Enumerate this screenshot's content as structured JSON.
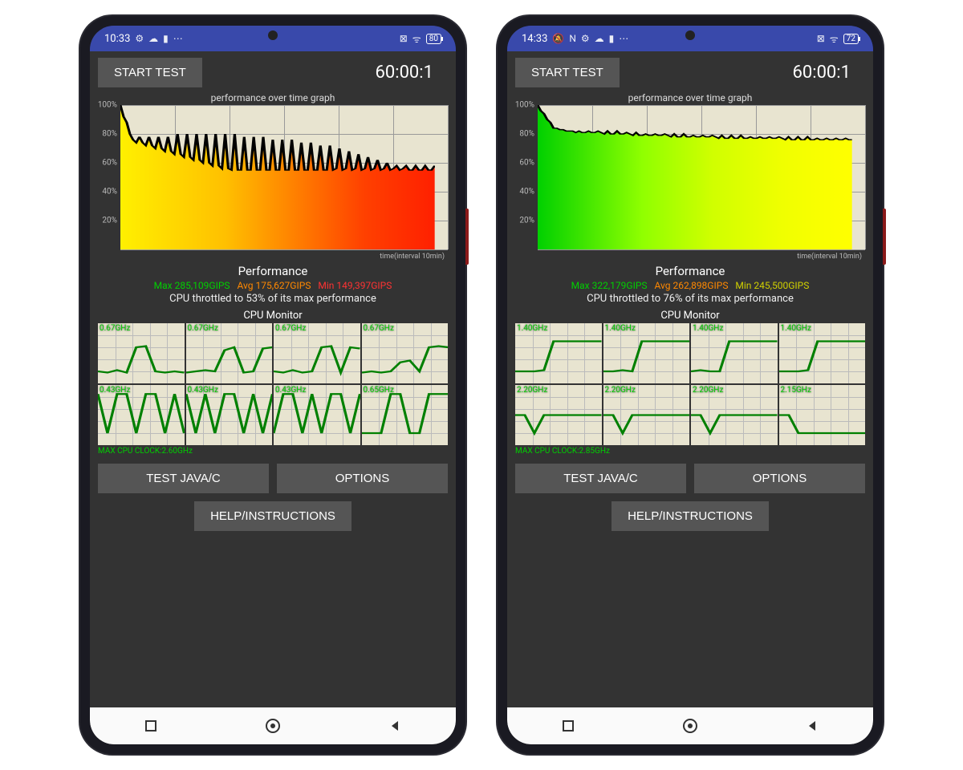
{
  "phones": [
    {
      "status": {
        "time": "10:33",
        "battery": "80",
        "left_icons": [
          "⚙",
          "☁",
          "▮",
          "⋯"
        ],
        "right_icons": [
          "⊠",
          "ᯤ"
        ]
      },
      "timer": "60:00:1",
      "start_label": "START TEST",
      "chart": {
        "title": "performance over time graph",
        "time_label": "time(interval 10min)",
        "y_ticks": [
          "100%",
          "80%",
          "60%",
          "40%",
          "20%"
        ],
        "ylim": [
          0,
          100
        ],
        "grid_color": "#999999",
        "bg_color": "#e8e4d0",
        "width_pct": 96,
        "line": [
          100,
          92,
          88,
          80,
          76,
          74,
          78,
          74,
          72,
          78,
          72,
          70,
          78,
          70,
          68,
          78,
          68,
          66,
          80,
          66,
          64,
          80,
          64,
          62,
          80,
          62,
          60,
          80,
          60,
          58,
          80,
          58,
          56,
          80,
          56,
          55,
          80,
          55,
          55,
          78,
          55,
          55,
          78,
          55,
          55,
          78,
          55,
          55,
          76,
          55,
          55,
          76,
          55,
          55,
          76,
          55,
          55,
          74,
          55,
          55,
          74,
          55,
          55,
          72,
          55,
          55,
          72,
          55,
          56,
          70,
          55,
          56,
          68,
          55,
          56,
          66,
          55,
          56,
          64,
          55,
          56,
          62,
          55,
          56,
          60,
          55,
          56,
          58,
          55,
          56,
          58,
          55,
          55,
          58,
          55,
          55,
          58,
          55,
          55,
          58
        ],
        "gradient": [
          "#fff000",
          "#ffe000",
          "#ffd000",
          "#ffc000",
          "#ffa000",
          "#ff8000",
          "#ff6000",
          "#ff4000",
          "#ff3000",
          "#ff2000"
        ],
        "line_color": "#000000"
      },
      "perf": {
        "heading": "Performance",
        "max": "Max 285,109GIPS",
        "avg": "Avg 175,627GIPS",
        "min": "Min 149,397GIPS",
        "min_color": "#ff3333",
        "throttle": "CPU throttled to 53% of its max performance"
      },
      "cpu": {
        "title": "CPU Monitor",
        "max_clock": "MAX CPU CLOCK:2.60GHz",
        "cores": [
          {
            "freq": "0.67GHz",
            "line": [
              20,
              18,
              22,
              18,
              60,
              62,
              20,
              18,
              20,
              18
            ]
          },
          {
            "freq": "0.67GHz",
            "line": [
              18,
              20,
              22,
              20,
              55,
              60,
              18,
              20,
              58,
              60
            ]
          },
          {
            "freq": "0.67GHz",
            "line": [
              20,
              18,
              22,
              18,
              20,
              60,
              62,
              18,
              60,
              58
            ]
          },
          {
            "freq": "0.67GHz",
            "line": [
              18,
              20,
              18,
              20,
              35,
              38,
              20,
              60,
              62,
              60
            ]
          },
          {
            "freq": "0.43GHz",
            "line": [
              85,
              20,
              85,
              85,
              20,
              85,
              85,
              20,
              85,
              20
            ]
          },
          {
            "freq": "0.43GHz",
            "line": [
              85,
              20,
              85,
              20,
              85,
              85,
              20,
              85,
              20,
              85
            ]
          },
          {
            "freq": "0.43GHz",
            "line": [
              20,
              85,
              85,
              20,
              85,
              20,
              85,
              85,
              20,
              85
            ]
          },
          {
            "freq": "0.65GHz",
            "line": [
              20,
              20,
              20,
              85,
              85,
              20,
              20,
              85,
              85,
              85
            ]
          }
        ],
        "line_color": "#008000"
      },
      "buttons": {
        "test": "TEST JAVA/C",
        "options": "OPTIONS",
        "help": "HELP/INSTRUCTIONS"
      }
    },
    {
      "status": {
        "time": "14:33",
        "battery": "72",
        "left_icons": [
          "🔕",
          "N",
          "⚙",
          "☁",
          "▮",
          "⋯"
        ],
        "right_icons": [
          "⊠",
          "ᯤ"
        ]
      },
      "timer": "60:00:1",
      "start_label": "START TEST",
      "chart": {
        "title": "performance over time graph",
        "time_label": "time(interval 10min)",
        "y_ticks": [
          "100%",
          "80%",
          "60%",
          "40%",
          "20%"
        ],
        "ylim": [
          0,
          100
        ],
        "grid_color": "#999999",
        "bg_color": "#e8e4d0",
        "width_pct": 96,
        "line": [
          100,
          96,
          94,
          90,
          88,
          84,
          84,
          83,
          83,
          82,
          82,
          82,
          81,
          82,
          81,
          81,
          82,
          81,
          81,
          82,
          81,
          80,
          82,
          80,
          80,
          82,
          80,
          80,
          81,
          80,
          79,
          81,
          79,
          79,
          80,
          79,
          79,
          80,
          79,
          79,
          80,
          79,
          78,
          80,
          78,
          78,
          80,
          78,
          78,
          79,
          78,
          78,
          79,
          78,
          78,
          79,
          78,
          77,
          79,
          77,
          77,
          79,
          77,
          77,
          79,
          77,
          77,
          78,
          77,
          77,
          78,
          77,
          77,
          78,
          77,
          77,
          78,
          77,
          76,
          78,
          76,
          76,
          78,
          76,
          76,
          78,
          76,
          76,
          77,
          76,
          76,
          77,
          76,
          76,
          77,
          76,
          76,
          77,
          76,
          76
        ],
        "gradient": [
          "#00d000",
          "#30e000",
          "#60f000",
          "#90ff00",
          "#b0ff00",
          "#d0ff00",
          "#e0ff00",
          "#f0ff00",
          "#f8ff00",
          "#ffff00"
        ],
        "line_color": "#000000"
      },
      "perf": {
        "heading": "Performance",
        "max": "Max 322,179GIPS",
        "avg": "Avg 262,898GIPS",
        "min": "Min 245,500GIPS",
        "min_color": "#d0d000",
        "throttle": "CPU throttled to 76% of its max performance"
      },
      "cpu": {
        "title": "CPU Monitor",
        "max_clock": "MAX CPU CLOCK:2.85GHz",
        "cores": [
          {
            "freq": "1.40GHz",
            "line": [
              20,
              20,
              20,
              22,
              70,
              70,
              70,
              70,
              70,
              70
            ]
          },
          {
            "freq": "1.40GHz",
            "line": [
              20,
              20,
              22,
              20,
              70,
              70,
              70,
              70,
              70,
              70
            ]
          },
          {
            "freq": "1.40GHz",
            "line": [
              20,
              22,
              20,
              20,
              70,
              70,
              70,
              70,
              70,
              70
            ]
          },
          {
            "freq": "1.40GHz",
            "line": [
              20,
              20,
              20,
              22,
              70,
              70,
              70,
              70,
              70,
              70
            ]
          },
          {
            "freq": "2.20GHz",
            "line": [
              50,
              50,
              20,
              50,
              50,
              50,
              50,
              50,
              50,
              50
            ]
          },
          {
            "freq": "2.20GHz",
            "line": [
              50,
              50,
              20,
              50,
              50,
              50,
              50,
              50,
              50,
              50
            ]
          },
          {
            "freq": "2.20GHz",
            "line": [
              50,
              50,
              20,
              50,
              50,
              50,
              50,
              50,
              50,
              50
            ]
          },
          {
            "freq": "2.15GHz",
            "line": [
              50,
              50,
              20,
              20,
              20,
              20,
              20,
              20,
              20,
              20
            ]
          }
        ],
        "line_color": "#008000"
      },
      "buttons": {
        "test": "TEST JAVA/C",
        "options": "OPTIONS",
        "help": "HELP/INSTRUCTIONS"
      }
    }
  ]
}
